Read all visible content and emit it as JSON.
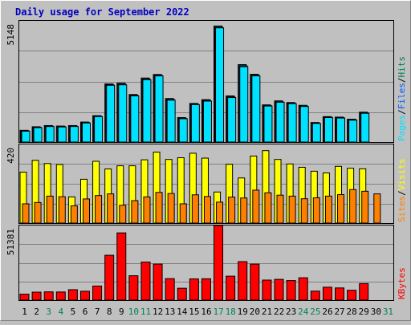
{
  "colors": {
    "background": "#c0c0c0",
    "title": "#0000c0",
    "pages": "#00e0ff",
    "files": "#0060ff",
    "hits": "#00805c",
    "visits": "#ffff00",
    "sites": "#ff8000",
    "kbytes": "#ff0000",
    "weekend_day_label": "#00805c",
    "weekday_label": "#000000",
    "grid": "#808080",
    "separator": "#0000ff"
  },
  "chart_data": [
    {
      "type": "bar",
      "title": "Daily usage for September 2022",
      "ylabel_max": "5148",
      "ylim": [
        0,
        5148
      ],
      "legend": [
        "Pages",
        "/",
        "Files",
        "/",
        "Hits"
      ],
      "legend_placement": "right",
      "categories": [
        "1",
        "2",
        "3",
        "4",
        "5",
        "6",
        "7",
        "8",
        "9",
        "10",
        "11",
        "12",
        "13",
        "14",
        "15",
        "16",
        "17",
        "18",
        "19",
        "20",
        "21",
        "22",
        "23",
        "24",
        "25",
        "26",
        "27",
        "28",
        "29",
        "30",
        "31"
      ],
      "weekend_days": [
        "3",
        "4",
        "10",
        "11",
        "17",
        "18",
        "24",
        "25",
        "31"
      ],
      "series": [
        {
          "name": "Hits",
          "values": [
            500,
            650,
            700,
            680,
            700,
            850,
            1120,
            2470,
            2500,
            2020,
            2720,
            2870,
            1850,
            1040,
            1640,
            1800,
            4930,
            1960,
            3290,
            2880,
            1580,
            1750,
            1680,
            1560,
            830,
            1080,
            1060,
            970,
            1270,
            0,
            0
          ]
        },
        {
          "name": "Files",
          "values": [
            480,
            630,
            680,
            660,
            680,
            830,
            1100,
            2440,
            2460,
            1990,
            2680,
            2840,
            1810,
            1010,
            1610,
            1770,
            4880,
            1920,
            3240,
            2840,
            1550,
            1710,
            1650,
            1530,
            810,
            1060,
            1040,
            950,
            1240,
            0,
            0
          ]
        },
        {
          "name": "Pages",
          "values": [
            460,
            610,
            660,
            640,
            660,
            810,
            1080,
            2410,
            2430,
            1960,
            2650,
            2810,
            1780,
            990,
            1590,
            1740,
            4850,
            1890,
            3200,
            2810,
            1530,
            1690,
            1630,
            1510,
            790,
            1040,
            1020,
            930,
            1220,
            0,
            0
          ]
        }
      ]
    },
    {
      "type": "bar",
      "ylabel_max": "420",
      "ylim": [
        0,
        420
      ],
      "legend": [
        "Sites",
        "/",
        "Visits"
      ],
      "legend_placement": "right",
      "categories": [
        "1",
        "2",
        "3",
        "4",
        "5",
        "6",
        "7",
        "8",
        "9",
        "10",
        "11",
        "12",
        "13",
        "14",
        "15",
        "16",
        "17",
        "18",
        "19",
        "20",
        "21",
        "22",
        "23",
        "24",
        "25",
        "26",
        "27",
        "28",
        "29",
        "30",
        "31"
      ],
      "series": [
        {
          "name": "Visits",
          "values": [
            272,
            335,
            318,
            313,
            140,
            234,
            330,
            289,
            306,
            306,
            338,
            379,
            340,
            349,
            373,
            347,
            166,
            314,
            241,
            358,
            387,
            340,
            316,
            298,
            277,
            268,
            303,
            293,
            290,
            0,
            0
          ]
        },
        {
          "name": "Sites",
          "values": [
            103,
            110,
            144,
            141,
            92,
            129,
            147,
            156,
            95,
            120,
            140,
            164,
            158,
            103,
            151,
            142,
            112,
            139,
            134,
            176,
            162,
            149,
            144,
            130,
            135,
            144,
            152,
            179,
            170,
            156,
            0
          ]
        }
      ]
    },
    {
      "type": "bar",
      "ylabel_max": "51381",
      "ylim": [
        0,
        51381
      ],
      "legend": [
        "KBytes"
      ],
      "legend_placement": "right",
      "categories": [
        "1",
        "2",
        "3",
        "4",
        "5",
        "6",
        "7",
        "8",
        "9",
        "10",
        "11",
        "12",
        "13",
        "14",
        "15",
        "16",
        "17",
        "18",
        "19",
        "20",
        "21",
        "22",
        "23",
        "24",
        "25",
        "26",
        "27",
        "28",
        "29",
        "30",
        "31"
      ],
      "series": [
        {
          "name": "KBytes",
          "values": [
            4100,
            5500,
            5700,
            5600,
            7200,
            6100,
            9700,
            30900,
            46300,
            16800,
            26200,
            24800,
            14800,
            8200,
            14600,
            14700,
            51381,
            16500,
            26500,
            24800,
            13800,
            14300,
            13500,
            15400,
            6200,
            8900,
            8400,
            6800,
            11400,
            0,
            0
          ]
        }
      ]
    }
  ]
}
